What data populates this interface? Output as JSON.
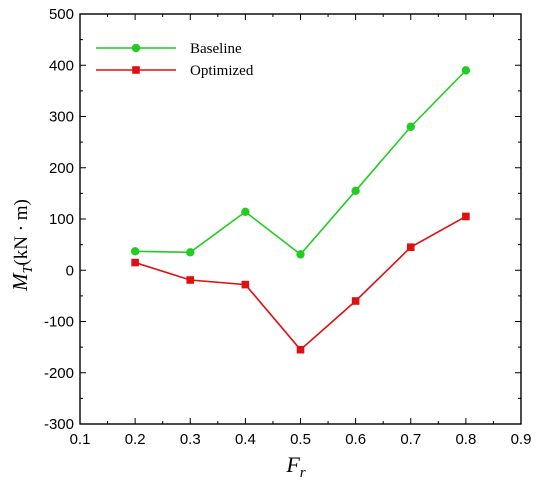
{
  "chart_data": {
    "type": "line",
    "x": [
      0.2,
      0.3,
      0.4,
      0.5,
      0.6,
      0.7,
      0.8
    ],
    "series": [
      {
        "name": "Baseline",
        "values": [
          37,
          35,
          114,
          31,
          155,
          280,
          390
        ],
        "color": "#22cc22",
        "marker": "circle"
      },
      {
        "name": "Optimized",
        "values": [
          15,
          -19,
          -28,
          -155,
          -60,
          45,
          105
        ],
        "color": "#e01010",
        "marker": "square"
      }
    ],
    "xlim": [
      0.1,
      0.9
    ],
    "ylim": [
      -300,
      500
    ],
    "xticks": [
      "0.1",
      "0.2",
      "0.3",
      "0.4",
      "0.5",
      "0.6",
      "0.7",
      "0.8",
      "0.9"
    ],
    "yticks": [
      "-300",
      "-200",
      "-100",
      "0",
      "100",
      "200",
      "300",
      "400",
      "500"
    ],
    "xlabel": {
      "main": "F",
      "sub": "r"
    },
    "ylabel": {
      "main": "M",
      "sub": "T",
      "unit": "(kN · m)"
    },
    "grid": false,
    "legend_position": "top-left"
  }
}
